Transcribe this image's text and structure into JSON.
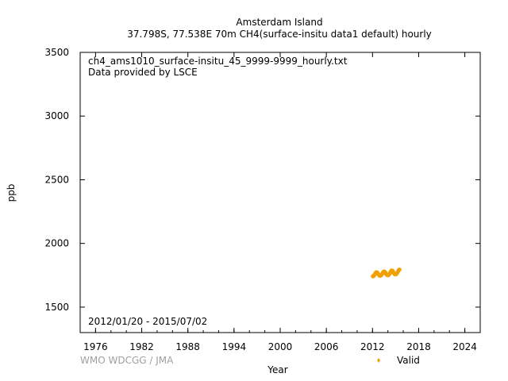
{
  "chart_data": {
    "type": "scatter",
    "title": "Amsterdam Island",
    "subtitle": "37.798S, 77.538E 70m    CH4(surface-insitu data1 default) hourly",
    "xlabel": "Year",
    "ylabel": "ppb",
    "xlim": [
      1974,
      2026
    ],
    "ylim": [
      1300,
      3500
    ],
    "x_ticks": [
      1976,
      1982,
      1988,
      1994,
      2000,
      2006,
      2012,
      2018,
      2024
    ],
    "y_ticks": [
      1500,
      2000,
      2500,
      3000,
      3500
    ],
    "file_label": "ch4_ams1010_surface-insitu_45_9999-9999_hourly.txt",
    "provider_label": "Data provided by LSCE",
    "date_range": "2012/01/20 - 2015/07/02",
    "credit": "WMO WDCGG / JMA",
    "legend": {
      "position": "bottom-right",
      "label": "Valid"
    },
    "series": [
      {
        "name": "Valid",
        "color": "#f0a000",
        "x": [
          2012.05,
          2012.12,
          2012.2,
          2012.3,
          2012.4,
          2012.5,
          2012.6,
          2012.7,
          2012.8,
          2012.9,
          2013.0,
          2013.1,
          2013.2,
          2013.3,
          2013.4,
          2013.5,
          2013.6,
          2013.7,
          2013.8,
          2013.9,
          2014.0,
          2014.1,
          2014.2,
          2014.3,
          2014.4,
          2014.5,
          2014.6,
          2014.7,
          2014.8,
          2014.9,
          2015.0,
          2015.1,
          2015.2,
          2015.3,
          2015.4,
          2015.5
        ],
        "y": [
          1742,
          1744,
          1748,
          1758,
          1768,
          1774,
          1772,
          1764,
          1754,
          1748,
          1746,
          1749,
          1756,
          1766,
          1776,
          1780,
          1777,
          1768,
          1758,
          1752,
          1750,
          1753,
          1760,
          1770,
          1782,
          1788,
          1785,
          1775,
          1764,
          1758,
          1757,
          1760,
          1768,
          1778,
          1790,
          1795
        ]
      }
    ]
  }
}
